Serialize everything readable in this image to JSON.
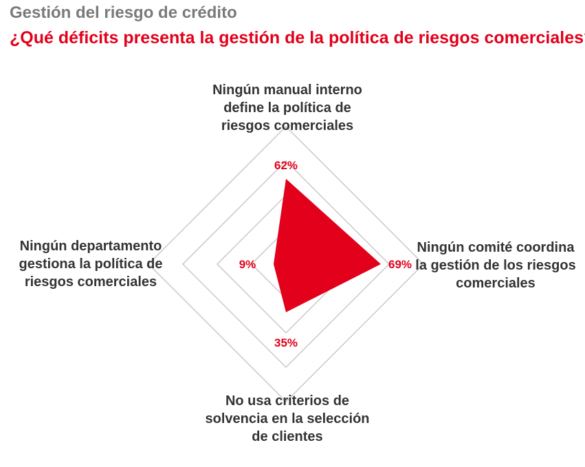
{
  "header": {
    "subtitle": "Gestión del riesgo de crédito",
    "title": "¿Qué déficits presenta la gestión de la política de riesgos comerciales?"
  },
  "colors": {
    "accent": "#e2001a",
    "subtitle": "#7a7a7a",
    "grid": "#c8c8c8",
    "text": "#333333"
  },
  "chart_data": {
    "type": "radar",
    "axes": [
      {
        "label_lines": [
          "Ningún manual interno",
          "define la política de",
          "riesgos comerciales"
        ],
        "value": 62,
        "value_label": "62%"
      },
      {
        "label_lines": [
          "Ningún comité coordina",
          "la gestión de los riesgos",
          "comerciales"
        ],
        "value": 69,
        "value_label": "69%"
      },
      {
        "label_lines": [
          "No usa criterios de",
          "solvencia en la selección",
          "de clientes"
        ],
        "value": 35,
        "value_label": "35%"
      },
      {
        "label_lines": [
          "Ningún departamento",
          "gestiona la política de",
          "riesgos comerciales"
        ],
        "value": 9,
        "value_label": "9%"
      }
    ],
    "scale_max": 100,
    "grid_rings": 4
  }
}
